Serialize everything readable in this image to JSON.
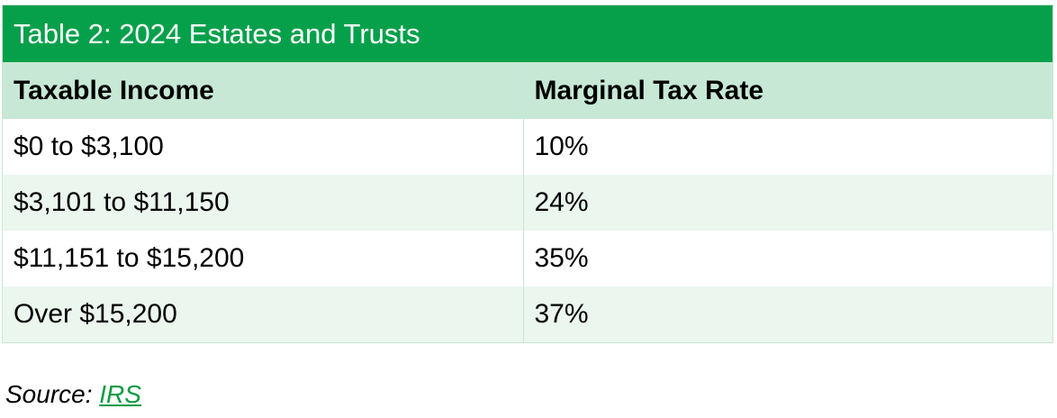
{
  "table": {
    "title": "Table 2: 2024 Estates and Trusts",
    "headers": [
      "Taxable Income",
      "Marginal Tax Rate"
    ],
    "rows": [
      [
        "$0 to $3,100",
        "10%"
      ],
      [
        "$3,101 to $11,150",
        "24%"
      ],
      [
        "$11,151 to $15,200",
        "35%"
      ],
      [
        "Over $15,200",
        "37%"
      ]
    ]
  },
  "source": {
    "label": "Source:",
    "link_text": "IRS"
  },
  "colors": {
    "title_bg": "#06a04b",
    "header_bg": "#c6e8d5",
    "alt_row_bg": "#ebf6ef",
    "link": "#0b9a45"
  }
}
